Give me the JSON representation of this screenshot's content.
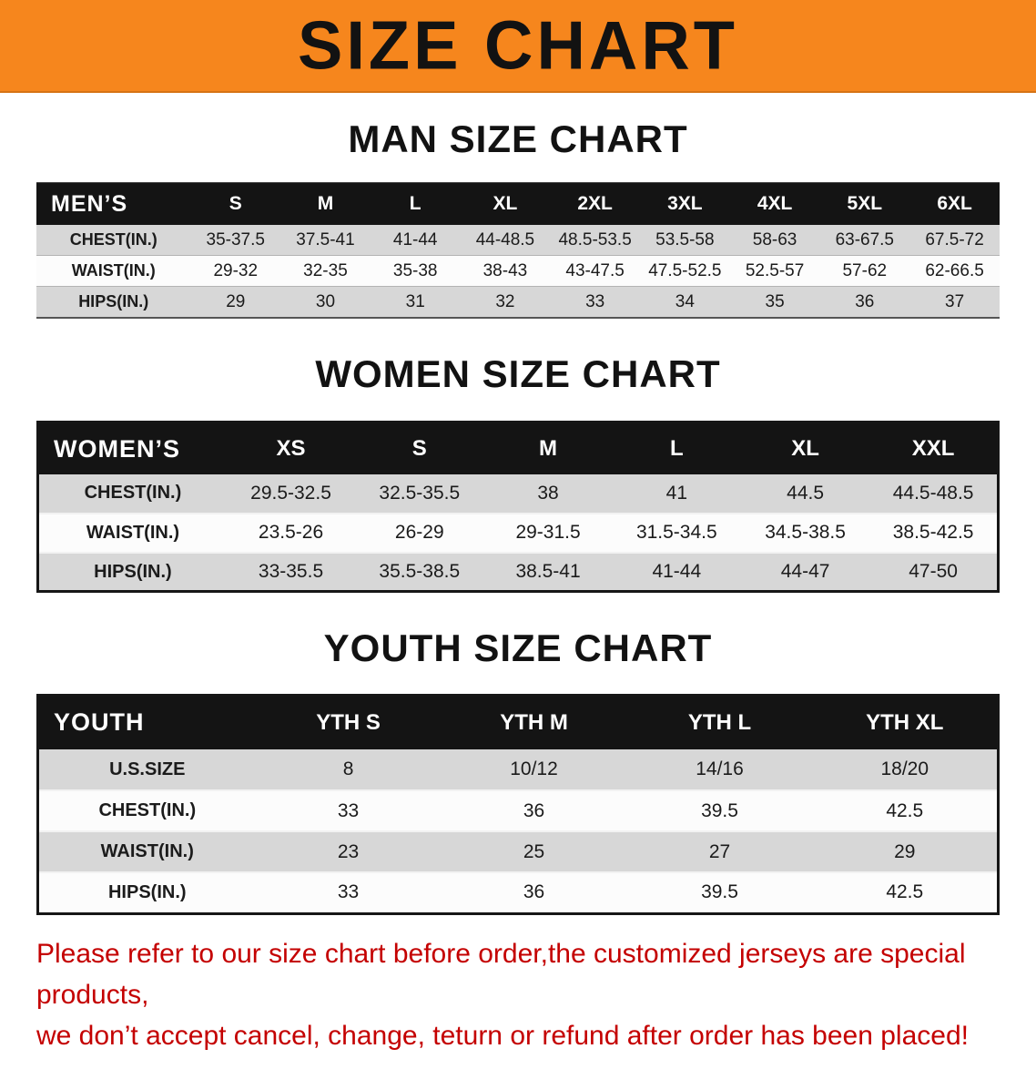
{
  "banner": {
    "title": "SIZE CHART"
  },
  "sections": [
    {
      "heading": "MAN SIZE CHART",
      "table": {
        "header": [
          "MEN’S",
          "S",
          "M",
          "L",
          "XL",
          "2XL",
          "3XL",
          "4XL",
          "5XL",
          "6XL"
        ],
        "rows": [
          {
            "label": "CHEST(IN.)",
            "values": [
              "35-37.5",
              "37.5-41",
              "41-44",
              "44-48.5",
              "48.5-53.5",
              "53.5-58",
              "58-63",
              "63-67.5",
              "67.5-72"
            ]
          },
          {
            "label": "WAIST(IN.)",
            "values": [
              "29-32",
              "32-35",
              "35-38",
              "38-43",
              "43-47.5",
              "47.5-52.5",
              "52.5-57",
              "57-62",
              "62-66.5"
            ]
          },
          {
            "label": "HIPS(IN.)",
            "values": [
              "29",
              "30",
              "31",
              "32",
              "33",
              "34",
              "35",
              "36",
              "37"
            ]
          }
        ]
      }
    },
    {
      "heading": "WOMEN SIZE CHART",
      "table": {
        "header": [
          "WOMEN’S",
          "XS",
          "S",
          "M",
          "L",
          "XL",
          "XXL"
        ],
        "rows": [
          {
            "label": "CHEST(IN.)",
            "values": [
              "29.5-32.5",
              "32.5-35.5",
              "38",
              "41",
              "44.5",
              "44.5-48.5"
            ]
          },
          {
            "label": "WAIST(IN.)",
            "values": [
              "23.5-26",
              "26-29",
              "29-31.5",
              "31.5-34.5",
              "34.5-38.5",
              "38.5-42.5"
            ]
          },
          {
            "label": "HIPS(IN.)",
            "values": [
              "33-35.5",
              "35.5-38.5",
              "38.5-41",
              "41-44",
              "44-47",
              "47-50"
            ]
          }
        ]
      }
    },
    {
      "heading": "YOUTH SIZE CHART",
      "table": {
        "header": [
          "YOUTH",
          "YTH S",
          "YTH M",
          "YTH L",
          "YTH XL"
        ],
        "rows": [
          {
            "label": "U.S.SIZE",
            "values": [
              "8",
              "10/12",
              "14/16",
              "18/20"
            ]
          },
          {
            "label": "CHEST(IN.)",
            "values": [
              "33",
              "36",
              "39.5",
              "42.5"
            ]
          },
          {
            "label": "WAIST(IN.)",
            "values": [
              "23",
              "25",
              "27",
              "29"
            ]
          },
          {
            "label": "HIPS(IN.)",
            "values": [
              "33",
              "36",
              "39.5",
              "42.5"
            ]
          }
        ]
      }
    }
  ],
  "disclaimer": {
    "line1": "Please refer to our size chart before order,the customized jerseys are special products,",
    "line2": "we don’t accept cancel, change, teturn or refund after order has been placed!"
  },
  "colors": {
    "accent-orange": "#F6861D",
    "header-bg": "#141414",
    "row-stripe": "#D7D7D7",
    "alert-red": "#C40000"
  }
}
